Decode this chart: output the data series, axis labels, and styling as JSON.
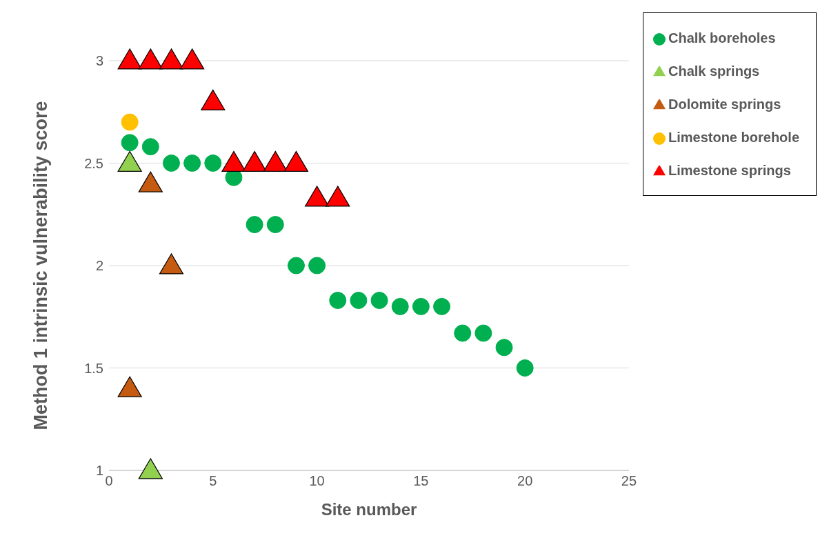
{
  "chart_data": {
    "type": "scatter",
    "xlabel": "Site number",
    "ylabel": "Method 1 intrinsic vulnerability score",
    "xlim": [
      0,
      25
    ],
    "xticks": [
      0,
      5,
      10,
      15,
      20,
      25
    ],
    "ylim": [
      1,
      3
    ],
    "yticks": [
      1,
      1.5,
      2,
      2.5,
      3
    ],
    "grid": "y",
    "legend": "top right",
    "series": [
      {
        "name": "Chalk boreholes",
        "color": "#00b050",
        "marker": "circle",
        "x": [
          1,
          2,
          3,
          4,
          5,
          6,
          7,
          8,
          9,
          10,
          11,
          12,
          13,
          14,
          15,
          16,
          17,
          18,
          19,
          20
        ],
        "values": [
          2.6,
          2.58,
          2.5,
          2.5,
          2.5,
          2.43,
          2.2,
          2.2,
          2,
          2,
          1.83,
          1.83,
          1.83,
          1.8,
          1.8,
          1.8,
          1.67,
          1.67,
          1.6,
          1.5
        ]
      },
      {
        "name": "Limestone borehole",
        "color": "#ffc000",
        "marker": "circle",
        "x": [
          1
        ],
        "values": [
          2.7
        ]
      },
      {
        "name": "Chalk springs",
        "color": "#92d050",
        "marker": "triangle",
        "x": [
          1,
          2
        ],
        "values": [
          2.5,
          1
        ]
      },
      {
        "name": "Dolomite springs",
        "color": "#c55a11",
        "marker": "triangle",
        "x": [
          1,
          2,
          3
        ],
        "values": [
          1.4,
          2.4,
          2
        ]
      },
      {
        "name": "Limestone springs",
        "color": "#ff0000",
        "marker": "triangle",
        "x": [
          1,
          2,
          3,
          4,
          5,
          6,
          7,
          8,
          9,
          10,
          11
        ],
        "values": [
          3,
          3,
          3,
          3,
          2.8,
          2.5,
          2.5,
          2.5,
          2.5,
          2.33,
          2.33
        ]
      }
    ]
  }
}
